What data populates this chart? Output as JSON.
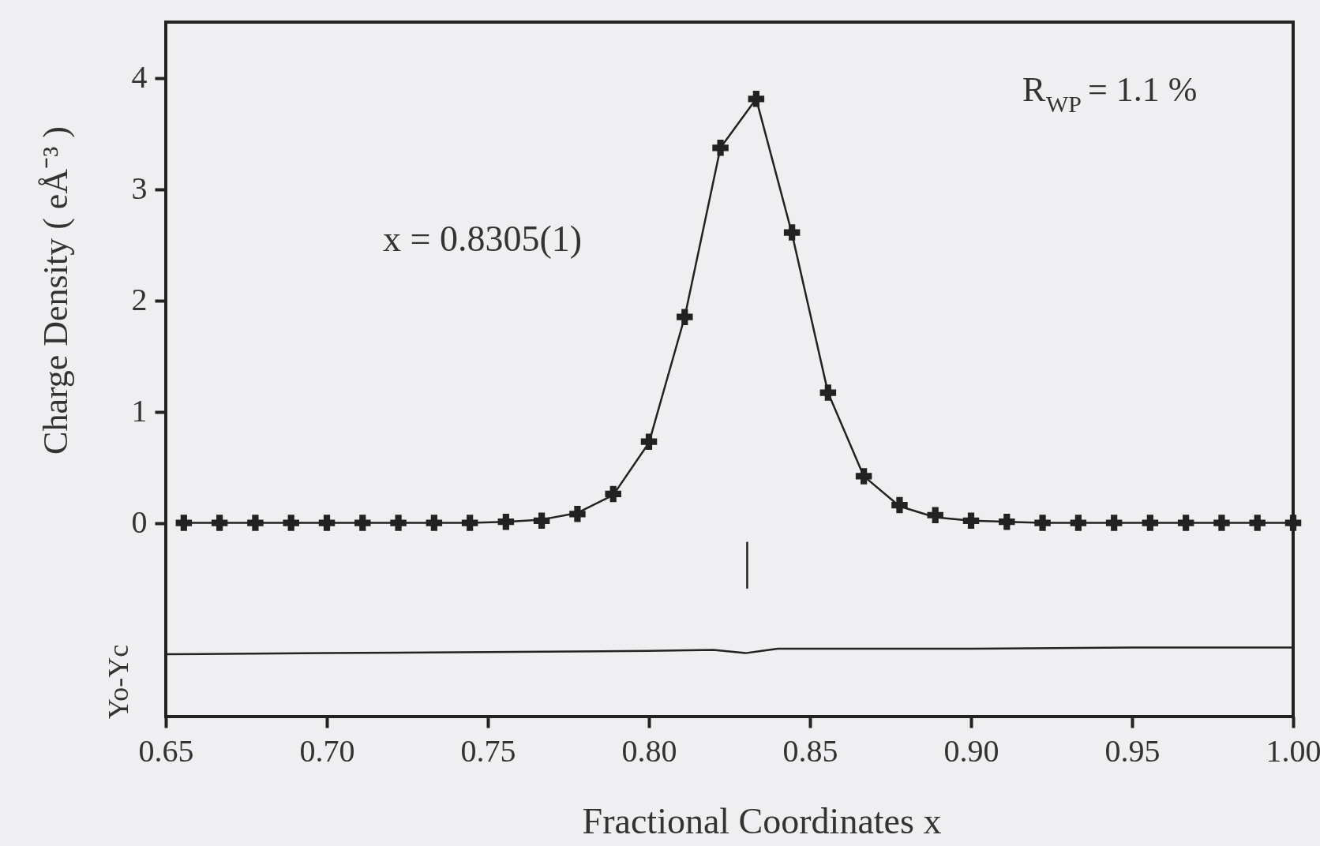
{
  "chart_data": {
    "type": "line",
    "xlabel": "Fractional Coordinates x",
    "ylabel": "Charge Density ( eÅ⁻³ )",
    "annotations": [
      "x = 0.8305(1)",
      "R$_{WP}$ = 1.1 %",
      "Yo-Yc"
    ],
    "xlim": [
      0.65,
      1.0
    ],
    "ylim": [
      -1.74,
      4.5
    ],
    "xticks": [
      0.65,
      {
        "value": 0.7,
        "label": "0.70"
      },
      0.75,
      {
        "value": 0.8,
        "label": "0.80"
      },
      0.85,
      {
        "value": 0.9,
        "label": "0.90"
      },
      0.95,
      {
        "value": 1.0,
        "label": "1.00"
      }
    ],
    "yticks": [
      0,
      1,
      2,
      3,
      4
    ],
    "grid": false,
    "line_style": "solid",
    "series": [
      {
        "color": "#222222",
        "x": [
          0.6556,
          0.6667,
          0.6778,
          0.6889,
          0.7,
          0.7111,
          0.7222,
          0.7333,
          0.7444,
          0.7556,
          0.7667,
          0.7778,
          0.7889,
          0.8,
          0.8111,
          0.8222,
          0.8333,
          0.8444,
          0.8556,
          0.8667,
          0.8778,
          0.8889,
          0.9,
          0.9111,
          0.9222,
          0.9333,
          0.9444,
          0.9556,
          0.9667,
          0.9778,
          0.9889,
          1.0
        ],
        "values": [
          0,
          0,
          0,
          0,
          0,
          0,
          0,
          0,
          0,
          0.01,
          0.03,
          0.09,
          0.25,
          0.72,
          1.85,
          3.37,
          3.81,
          2.6,
          1.17,
          0.42,
          0.15,
          0.05,
          0.02,
          0.01,
          0,
          0,
          0,
          0,
          0,
          0,
          0,
          0
        ]
      },
      {
        "type": "scatter",
        "marker": "cross",
        "color": "#222222",
        "x": [
          0.6556,
          0.6667,
          0.6778,
          0.6889,
          0.7,
          0.7111,
          0.7222,
          0.7333,
          0.7444,
          0.7556,
          0.7667,
          0.7778,
          0.7889,
          0.8,
          0.8111,
          0.8222,
          0.8333,
          0.8444,
          0.8556,
          0.8667,
          0.8778,
          0.8889,
          0.9,
          0.9111,
          0.9222,
          0.9333,
          0.9444,
          0.9556,
          0.9667,
          0.9778,
          0.9889,
          1.0
        ],
        "values": [
          0,
          0,
          0,
          0,
          0,
          0,
          0,
          0,
          0,
          0.01,
          0.02,
          0.08,
          0.26,
          0.73,
          1.85,
          3.37,
          3.81,
          2.61,
          1.17,
          0.42,
          0.16,
          0.07,
          0.02,
          0.01,
          0,
          0,
          0,
          0,
          0,
          0,
          0,
          0
        ]
      },
      {
        "type": "line",
        "color": "#222222",
        "x": [
          0.65,
          0.7,
          0.75,
          0.8,
          0.82,
          0.83,
          0.835,
          0.84,
          0.9,
          0.95,
          1.0
        ],
        "values": [
          -1.18,
          -1.17,
          -1.16,
          -1.15,
          -1.14,
          -1.17,
          -1.15,
          -1.13,
          -1.13,
          -1.12,
          -1.12
        ]
      },
      {
        "type": "line",
        "color": "#222222",
        "x": [
          0.8305,
          0.8305
        ],
        "values": [
          -0.17,
          -0.59
        ]
      }
    ]
  }
}
